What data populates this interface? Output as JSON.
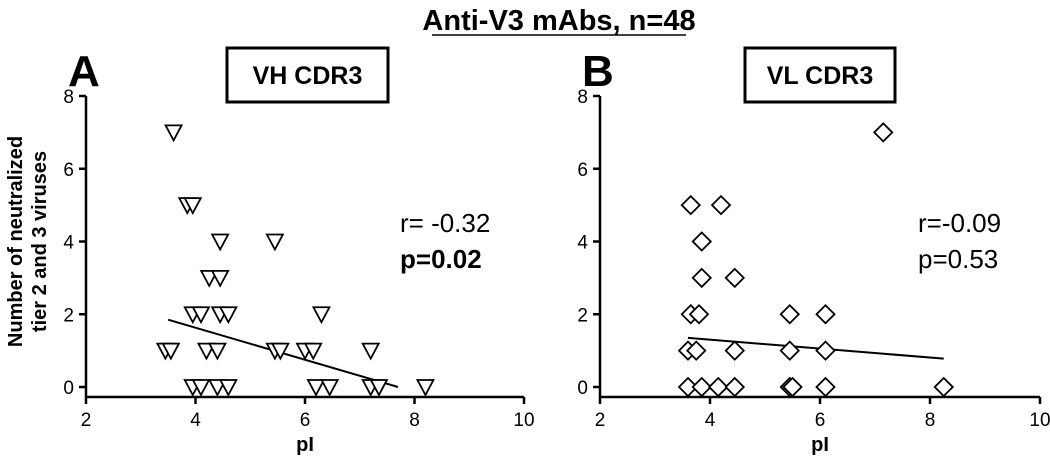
{
  "title": "Anti-V3 mAbs, n=48",
  "chart_data": [
    {
      "type": "scatter",
      "panel": "A",
      "boxed_title": "VH CDR3",
      "xlabel": "pI",
      "ylabel": [
        "Number of neutralized",
        "tier 2 and 3 viruses"
      ],
      "xlim": [
        2,
        10
      ],
      "ylim": [
        0,
        8
      ],
      "xticks": [
        2,
        4,
        6,
        8,
        10
      ],
      "yticks": [
        0,
        2,
        4,
        6,
        8
      ],
      "marker": "triangle-down",
      "stats": [
        "r= -0.32",
        "p=0.02"
      ],
      "regression": {
        "x": [
          3.5,
          7.7
        ],
        "y": [
          1.85,
          0.0
        ]
      },
      "points": [
        {
          "x": 3.6,
          "y": 7
        },
        {
          "x": 3.85,
          "y": 5
        },
        {
          "x": 3.95,
          "y": 5
        },
        {
          "x": 4.45,
          "y": 4
        },
        {
          "x": 5.45,
          "y": 4
        },
        {
          "x": 4.25,
          "y": 3
        },
        {
          "x": 4.45,
          "y": 3
        },
        {
          "x": 3.95,
          "y": 2
        },
        {
          "x": 4.1,
          "y": 2
        },
        {
          "x": 4.45,
          "y": 2
        },
        {
          "x": 4.6,
          "y": 2
        },
        {
          "x": 6.3,
          "y": 2
        },
        {
          "x": 3.45,
          "y": 1
        },
        {
          "x": 3.55,
          "y": 1
        },
        {
          "x": 4.2,
          "y": 1
        },
        {
          "x": 4.4,
          "y": 1
        },
        {
          "x": 5.45,
          "y": 1
        },
        {
          "x": 5.55,
          "y": 1
        },
        {
          "x": 6.0,
          "y": 1
        },
        {
          "x": 6.15,
          "y": 1
        },
        {
          "x": 7.2,
          "y": 1
        },
        {
          "x": 3.95,
          "y": 0
        },
        {
          "x": 4.1,
          "y": 0
        },
        {
          "x": 4.4,
          "y": 0
        },
        {
          "x": 4.6,
          "y": 0
        },
        {
          "x": 6.2,
          "y": 0
        },
        {
          "x": 6.45,
          "y": 0
        },
        {
          "x": 7.2,
          "y": 0
        },
        {
          "x": 7.35,
          "y": 0
        },
        {
          "x": 8.2,
          "y": 0
        }
      ]
    },
    {
      "type": "scatter",
      "panel": "B",
      "boxed_title": "VL CDR3",
      "xlabel": "pI",
      "ylabel": [],
      "xlim": [
        2,
        10
      ],
      "ylim": [
        0,
        8
      ],
      "xticks": [
        2,
        4,
        6,
        8,
        10
      ],
      "yticks": [
        0,
        2,
        4,
        6,
        8
      ],
      "marker": "diamond",
      "stats": [
        "r=-0.09",
        "p=0.53"
      ],
      "regression": {
        "x": [
          3.6,
          8.25
        ],
        "y": [
          1.35,
          0.78
        ]
      },
      "points": [
        {
          "x": 7.15,
          "y": 7
        },
        {
          "x": 3.65,
          "y": 5
        },
        {
          "x": 4.2,
          "y": 5
        },
        {
          "x": 3.85,
          "y": 4
        },
        {
          "x": 3.85,
          "y": 3
        },
        {
          "x": 4.45,
          "y": 3
        },
        {
          "x": 3.65,
          "y": 2
        },
        {
          "x": 3.8,
          "y": 2
        },
        {
          "x": 5.45,
          "y": 2
        },
        {
          "x": 6.1,
          "y": 2
        },
        {
          "x": 3.6,
          "y": 1
        },
        {
          "x": 3.75,
          "y": 1
        },
        {
          "x": 4.45,
          "y": 1
        },
        {
          "x": 5.45,
          "y": 1
        },
        {
          "x": 6.1,
          "y": 1
        },
        {
          "x": 3.6,
          "y": 0
        },
        {
          "x": 3.85,
          "y": 0
        },
        {
          "x": 4.15,
          "y": 0
        },
        {
          "x": 4.45,
          "y": 0
        },
        {
          "x": 5.45,
          "y": 0
        },
        {
          "x": 5.5,
          "y": 0
        },
        {
          "x": 6.1,
          "y": 0
        },
        {
          "x": 8.25,
          "y": 0
        }
      ]
    }
  ]
}
